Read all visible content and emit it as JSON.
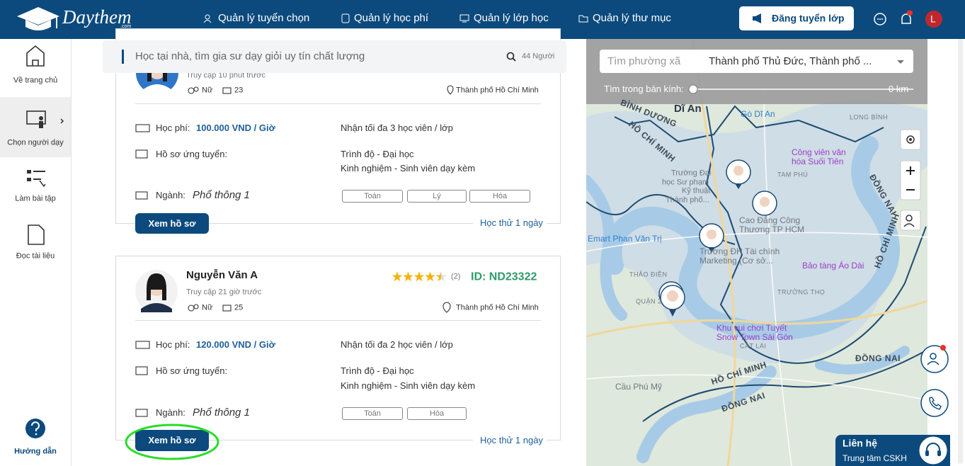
{
  "header": {
    "logo": "Daythem",
    "logo_sub": ".com",
    "nav": [
      "Quản lý tuyển chọn",
      "Quản lý học phí",
      "Quản lý lớp học",
      "Quản lý thư mục"
    ],
    "post_button": "Đăng tuyển lớp",
    "avatar": "L"
  },
  "sidebar": {
    "items": [
      "Về trang chủ",
      "Chọn người dạy",
      "Làm bài tập",
      "Đọc tài liệu"
    ],
    "help": "Hướng dẫn"
  },
  "search": {
    "placeholder": "Học tại nhà, tìm gia sư dạy giỏi uy tín chất lượng",
    "count": "44 Người"
  },
  "tutors": [
    {
      "visit": "Truy cập 10 phút trước",
      "gender": "Nữ",
      "age": 23,
      "location": "Thành phố Hồ Chí Minh",
      "fee_label": "Học phí:",
      "fee": "100.000 VND / Giờ",
      "capacity": "Nhận tối đa 3 học viên / lớp",
      "profile_label": "Hồ sơ ứng tuyển:",
      "level": "Trình độ - Đại học",
      "experience": "Kinh nghiệm - Sinh viên dạy kèm",
      "major_label": "Ngành:",
      "major": "Phổ thông 1",
      "subjects": [
        "Toán",
        "Lý",
        "Hóa"
      ],
      "button": "Xem hồ sơ",
      "trial": "Học thử 1 ngày"
    },
    {
      "name": "Nguyễn Văn A",
      "rating": 4.5,
      "reviews": "(2)",
      "id": "ID: ND23322",
      "visit": "Truy cập 21 giờ trước",
      "gender": "Nữ",
      "age": 25,
      "location": "Thành phố Hồ Chí Minh",
      "fee_label": "Học phí:",
      "fee": "120.000 VND / Giờ",
      "capacity": "Nhận tối đa 2 học viên / lớp",
      "profile_label": "Hồ sơ ứng tuyển:",
      "level": "Trình độ - Đại học",
      "experience": "Kinh nghiệm - Sinh viên dạy kèm",
      "major_label": "Ngành:",
      "major": "Phổ thông 1",
      "subjects": [
        "Toán",
        "Hóa"
      ],
      "button": "Xem hồ sơ",
      "trial": "Học thử 1 ngày"
    }
  ],
  "map": {
    "ward_placeholder": "Tìm phường xã",
    "ward_value": "Thành phố Thủ Đức, Thành phố ...",
    "radius_label": "Tìm trong bán kính:",
    "radius_value": "0 km",
    "labels": [
      "Dĩ An",
      "Gò Dĩ An",
      "BÌNH DƯƠNG",
      "HỒ CHÍ MINH",
      "LONG BÌNH",
      "Công viên văn",
      "hóa Suối Tiên",
      "Trường Đại",
      "học Sư phạm",
      "Kỹ thuật",
      "Thành phố...",
      "TAM PHÚ",
      "Cao Đẳng Công",
      "Thương TP HCM",
      "Emart Phan Văn Trị",
      "Trường ĐH Tài chính",
      "Marketing (Cơ sở...",
      "Bảo tàng Áo Dài",
      "THẢO ĐIỀN",
      "TRƯỜNG THỌ",
      "QUẬN 2",
      "Khu vui chơi Tuyết",
      "Snow Town Sài Gòn",
      "CÁT LÁI",
      "HỒ CHÍ MINH",
      "ĐỒNG NAI",
      "ĐỒNG NAI",
      "Cầu Phú Mỹ",
      "HỒ CHÍ MINH",
      "ĐỒNG NAI"
    ]
  },
  "contact": {
    "title": "Liên hệ",
    "subtitle": "Trung tâm CSKH"
  }
}
